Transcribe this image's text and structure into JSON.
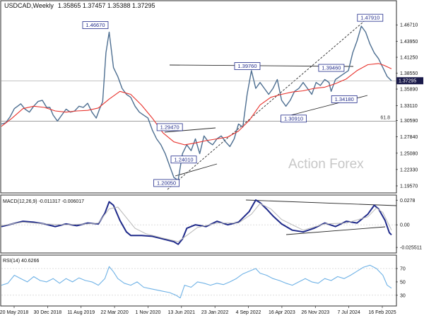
{
  "header": {
    "symbol_line": "USDCAD,Weekly",
    "ohlc_line": "1.35865 1.37457 1.35388 1.37295"
  },
  "watermark": "Action Forex",
  "colors": {
    "price": "#4e6f91",
    "sma": "#e8322c",
    "macd": "#1f2a8a",
    "signal": "#b8b8b8",
    "rsi": "#6fb2e6",
    "label_border": "#1f2a8a",
    "current_box": "#1a1a4a"
  },
  "chart_data": [
    {
      "type": "line",
      "panel": "price",
      "title": "USDCAD,Weekly",
      "ylim": [
        1.185,
        1.49
      ],
      "y_ticks": [
        1.1957,
        1.2233,
        1.2508,
        1.2784,
        1.3059,
        1.3311,
        1.3589,
        1.3855,
        1.4125,
        1.4395,
        1.4671
      ],
      "y_tick_labels": [
        "1.19570",
        "1.22330",
        "1.25080",
        "1.27840",
        "1.30590",
        "1.33110",
        "1.35890",
        "1.38550",
        "1.41250",
        "1.43950",
        "1.46710"
      ],
      "current_value": "1.37295",
      "x_tick_labels": [
        "20 May 2018",
        "30 Dec 2018",
        "11 Aug 2019",
        "22 Mar 2020",
        "1 Nov 2020",
        "13 Jun 2021",
        "23 Jan 2022",
        "4 Sep 2022",
        "16 Apr 2023",
        "26 Nov 2023",
        "7 Jul 2024",
        "16 Feb 2025"
      ],
      "series": [
        {
          "role": "price",
          "x": [
            0,
            4,
            8,
            12,
            15,
            18,
            22,
            26,
            30,
            34,
            38,
            42,
            45,
            48,
            52,
            56,
            60,
            64,
            68,
            72,
            76,
            80,
            84,
            88,
            91,
            94,
            97,
            100,
            104,
            108,
            112,
            116,
            120,
            124,
            128,
            132,
            136,
            140,
            144,
            148,
            152,
            156,
            160,
            164,
            168,
            172,
            176,
            180,
            184,
            188,
            192,
            196,
            200,
            204,
            208,
            212,
            216,
            220,
            224,
            228,
            232,
            236,
            240,
            244,
            248,
            252,
            256,
            260,
            264,
            268,
            272,
            276,
            280,
            284,
            288,
            292,
            296,
            300,
            304,
            306,
            310,
            314,
            318,
            322,
            326,
            330,
            334,
            338,
            342,
            346,
            350,
            354,
            358,
            362
          ],
          "y": [
            1.3,
            1.302,
            1.312,
            1.326,
            1.33,
            1.334,
            1.325,
            1.32,
            1.33,
            1.338,
            1.34,
            1.328,
            1.328,
            1.315,
            1.305,
            1.315,
            1.325,
            1.32,
            1.322,
            1.33,
            1.328,
            1.335,
            1.32,
            1.31,
            1.325,
            1.338,
            1.42,
            1.455,
            1.395,
            1.38,
            1.36,
            1.35,
            1.345,
            1.33,
            1.32,
            1.315,
            1.31,
            1.29,
            1.275,
            1.265,
            1.25,
            1.23,
            1.21,
            1.205,
            1.25,
            1.265,
            1.255,
            1.275,
            1.25,
            1.28,
            1.27,
            1.265,
            1.275,
            1.28,
            1.27,
            1.262,
            1.275,
            1.3,
            1.295,
            1.35,
            1.39,
            1.36,
            1.37,
            1.36,
            1.35,
            1.36,
            1.375,
            1.34,
            1.33,
            1.34,
            1.355,
            1.36,
            1.37,
            1.36,
            1.35,
            1.37,
            1.365,
            1.375,
            1.37,
            1.355,
            1.375,
            1.38,
            1.385,
            1.39,
            1.42,
            1.44,
            1.465,
            1.455,
            1.435,
            1.42,
            1.41,
            1.395,
            1.38,
            1.373
          ]
        },
        {
          "role": "moving-average",
          "x": [
            0,
            10,
            20,
            30,
            40,
            50,
            60,
            70,
            80,
            90,
            100,
            110,
            120,
            130,
            140,
            150,
            160,
            170,
            180,
            190,
            200,
            210,
            220,
            230,
            240,
            250,
            260,
            270,
            280,
            290,
            300,
            310,
            320,
            330,
            340,
            350,
            355,
            362
          ],
          "y": [
            1.296,
            1.31,
            1.326,
            1.33,
            1.328,
            1.322,
            1.32,
            1.322,
            1.323,
            1.327,
            1.342,
            1.355,
            1.35,
            1.332,
            1.31,
            1.285,
            1.27,
            1.265,
            1.268,
            1.272,
            1.275,
            1.278,
            1.288,
            1.306,
            1.332,
            1.345,
            1.35,
            1.354,
            1.356,
            1.36,
            1.362,
            1.368,
            1.376,
            1.39,
            1.4,
            1.402,
            1.399,
            1.393
          ]
        }
      ],
      "annotations": [
        {
          "label": "1.46670",
          "x": 99,
          "y": 1.4667
        },
        {
          "label": "1.20050",
          "x": 165,
          "y": 1.2005
        },
        {
          "label": "1.29470",
          "x": 168,
          "y": 1.2947
        },
        {
          "label": "1.24010",
          "x": 181,
          "y": 1.2401
        },
        {
          "label": "1.39760",
          "x": 240,
          "y": 1.3976
        },
        {
          "label": "1.30910",
          "x": 283,
          "y": 1.3091
        },
        {
          "label": "1.39460",
          "x": 318,
          "y": 1.3946
        },
        {
          "label": "1.34180",
          "x": 330,
          "y": 1.3418
        },
        {
          "label": "1.47910",
          "x": 354,
          "y": 1.4791
        }
      ],
      "level_label": "61.8",
      "level_value": 1.3045
    },
    {
      "type": "line",
      "panel": "macd",
      "title": "MACD(12,26,9) -0.011317 -0.006017",
      "ylim": [
        -0.031,
        0.032
      ],
      "y_ticks": [
        0.0278,
        0.0,
        -0.025511
      ],
      "y_tick_labels": [
        "0.0278",
        "0.00",
        "-0.025511"
      ],
      "series": [
        {
          "role": "macd",
          "x": [
            0,
            10,
            20,
            30,
            40,
            50,
            60,
            70,
            80,
            90,
            96,
            100,
            104,
            110,
            116,
            120,
            126,
            130,
            140,
            150,
            160,
            164,
            168,
            172,
            180,
            190,
            200,
            210,
            220,
            230,
            236,
            240,
            246,
            252,
            260,
            270,
            280,
            290,
            300,
            310,
            320,
            330,
            340,
            346,
            350,
            356,
            360,
            362
          ],
          "y": [
            -0.002,
            0.001,
            0.004,
            0.003,
            0.001,
            -0.002,
            0.001,
            -0.001,
            0.002,
            0.001,
            0.013,
            0.026,
            0.022,
            0.005,
            -0.008,
            -0.012,
            -0.012,
            -0.012,
            -0.013,
            -0.016,
            -0.019,
            -0.022,
            -0.016,
            -0.004,
            0.0,
            -0.002,
            0.004,
            0.0,
            0.003,
            0.015,
            0.028,
            0.025,
            0.018,
            0.01,
            0.001,
            -0.006,
            -0.008,
            -0.004,
            0.002,
            -0.002,
            0.004,
            0.002,
            0.012,
            0.022,
            0.018,
            0.005,
            -0.009,
            -0.011317
          ]
        },
        {
          "role": "signal",
          "x": [
            0,
            20,
            40,
            60,
            80,
            90,
            100,
            108,
            116,
            124,
            134,
            150,
            164,
            172,
            182,
            200,
            220,
            232,
            240,
            250,
            260,
            280,
            300,
            320,
            340,
            348,
            354,
            362
          ],
          "y": [
            -0.001,
            0.003,
            0.001,
            0.0,
            0.001,
            0.002,
            0.018,
            0.02,
            0.008,
            -0.004,
            -0.01,
            -0.015,
            -0.019,
            -0.012,
            -0.003,
            0.002,
            0.002,
            0.012,
            0.024,
            0.018,
            0.006,
            -0.006,
            0.001,
            0.002,
            0.009,
            0.019,
            0.014,
            -0.006017
          ]
        }
      ]
    },
    {
      "type": "line",
      "panel": "rsi",
      "title": "RSI(14) 40.6266",
      "ylim": [
        15,
        88
      ],
      "y_ticks": [
        70,
        50,
        30
      ],
      "y_tick_labels": [
        "70",
        "50",
        "30"
      ],
      "series": [
        {
          "role": "rsi",
          "x": [
            0,
            6,
            12,
            18,
            24,
            30,
            36,
            42,
            48,
            54,
            60,
            66,
            72,
            78,
            84,
            90,
            96,
            100,
            104,
            108,
            114,
            120,
            126,
            132,
            138,
            144,
            150,
            156,
            162,
            166,
            170,
            176,
            182,
            188,
            194,
            200,
            206,
            212,
            218,
            224,
            230,
            236,
            240,
            246,
            252,
            258,
            264,
            270,
            276,
            282,
            288,
            294,
            300,
            306,
            312,
            318,
            324,
            330,
            336,
            342,
            348,
            354,
            358,
            362
          ],
          "y": [
            45,
            48,
            60,
            55,
            50,
            58,
            52,
            50,
            55,
            48,
            55,
            50,
            56,
            52,
            50,
            45,
            55,
            73,
            65,
            55,
            48,
            45,
            50,
            42,
            40,
            38,
            36,
            34,
            30,
            26,
            45,
            42,
            50,
            48,
            45,
            48,
            46,
            50,
            55,
            62,
            66,
            70,
            63,
            60,
            55,
            52,
            48,
            45,
            50,
            55,
            50,
            48,
            55,
            52,
            58,
            55,
            60,
            66,
            72,
            75,
            70,
            60,
            45,
            40.6266
          ]
        }
      ]
    }
  ]
}
